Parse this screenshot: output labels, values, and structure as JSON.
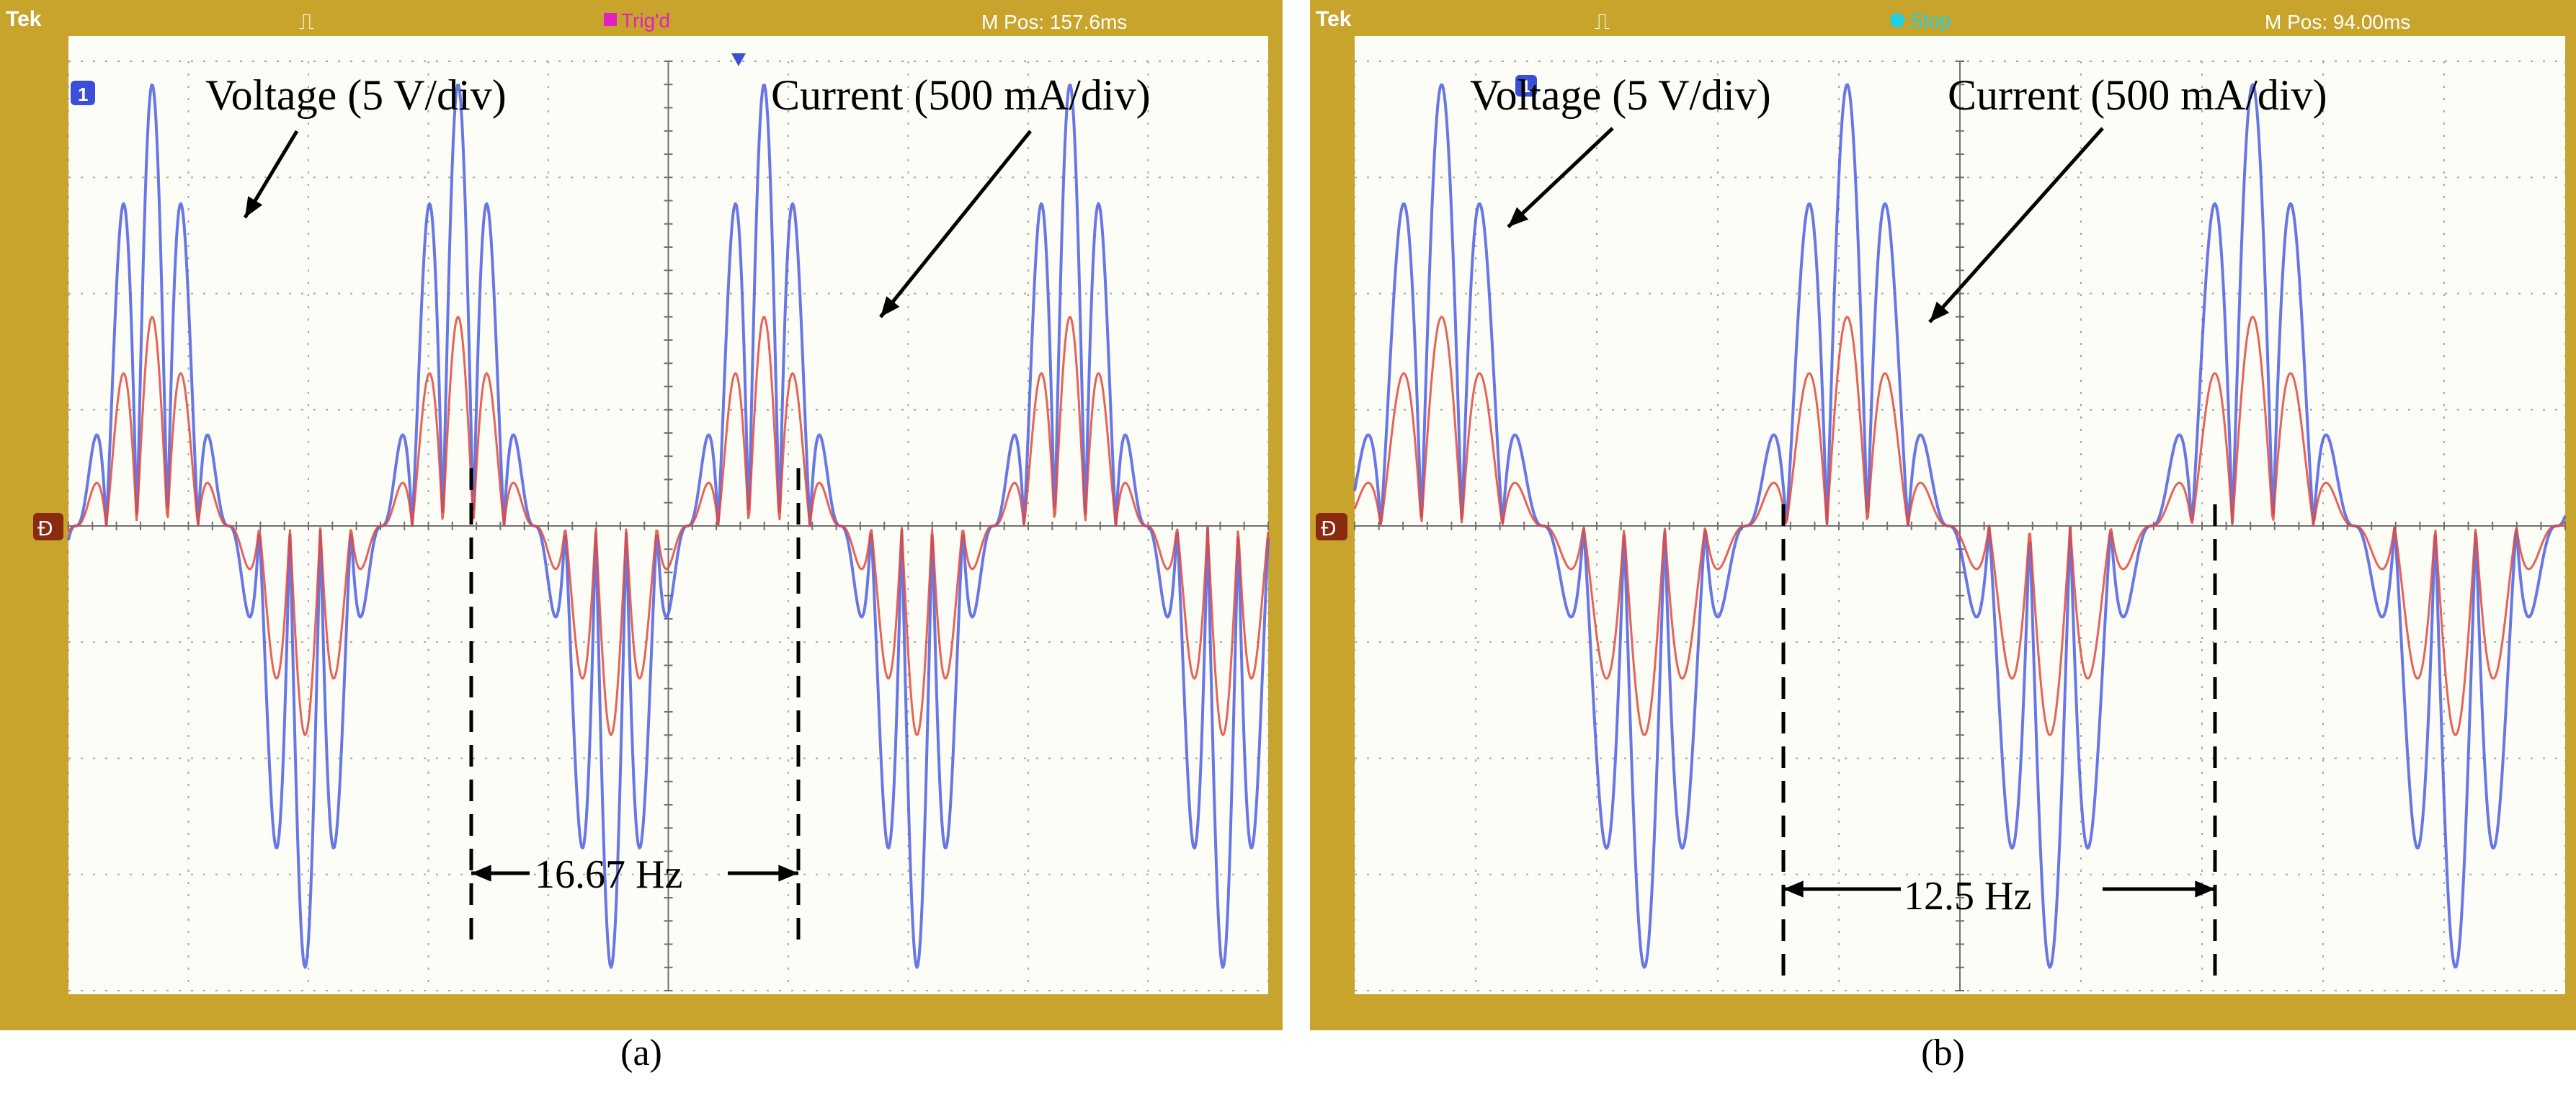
{
  "colors": {
    "frame": "#c8a42c",
    "screen": "#fbfdf6",
    "grid": "#a8a8a0",
    "voltage_trace": "#4f5fe0",
    "current_trace": "#e2483c",
    "trigger_magenta": "#e020c0",
    "stop_cyan": "#20d0e0",
    "annotation": "#000000"
  },
  "panels": [
    {
      "caption": "(a)",
      "status": {
        "brand": "Tek",
        "trigger_glyph": "⎍",
        "state": "Trig'd",
        "state_color": "#e020c0",
        "mpos": "M Pos: 157.6ms"
      },
      "marker_ch1": "1",
      "marker_ground": "Ð",
      "labels": {
        "voltage": "Voltage (5 V/div)",
        "current": "Current (500 mA/div)",
        "frequency": "16.67 Hz"
      }
    },
    {
      "caption": "(b)",
      "status": {
        "brand": "Tek",
        "trigger_glyph": "⎍",
        "state": "Stop",
        "state_color": "#20d0e0",
        "mpos": "M Pos: 94.00ms"
      },
      "marker_ch1": "1",
      "marker_ground": "Ð",
      "labels": {
        "voltage": "Voltage (5 V/div)",
        "current": "Current (500 mA/div)",
        "frequency": "12.5 Hz"
      }
    }
  ],
  "chart_data": [
    {
      "type": "line",
      "grid": {
        "x_divisions": 10,
        "y_divisions": 8
      },
      "ylim_div": [
        -4,
        4
      ],
      "frequency_hz": 16.67,
      "period_div": 2.55,
      "voltage_div_peaks": {
        "envelope_peak": 3.8,
        "side_peak": 1.8
      },
      "current_div_peaks": {
        "envelope_peak": 1.8,
        "side_peak": 0.9
      },
      "series": [
        {
          "name": "Voltage (5 V/div)",
          "scale": "5 V/div"
        },
        {
          "name": "Current (500 mA/div)",
          "scale": "500 mA/div"
        }
      ]
    },
    {
      "type": "line",
      "grid": {
        "x_divisions": 10,
        "y_divisions": 8
      },
      "ylim_div": [
        -4,
        4
      ],
      "frequency_hz": 12.5,
      "period_div": 3.35,
      "voltage_div_peaks": {
        "envelope_peak": 3.8,
        "side_peak": 1.8
      },
      "current_div_peaks": {
        "envelope_peak": 1.8,
        "side_peak": 0.9
      },
      "series": [
        {
          "name": "Voltage (5 V/div)",
          "scale": "5 V/div"
        },
        {
          "name": "Current (500 mA/div)",
          "scale": "500 mA/div"
        }
      ]
    }
  ]
}
